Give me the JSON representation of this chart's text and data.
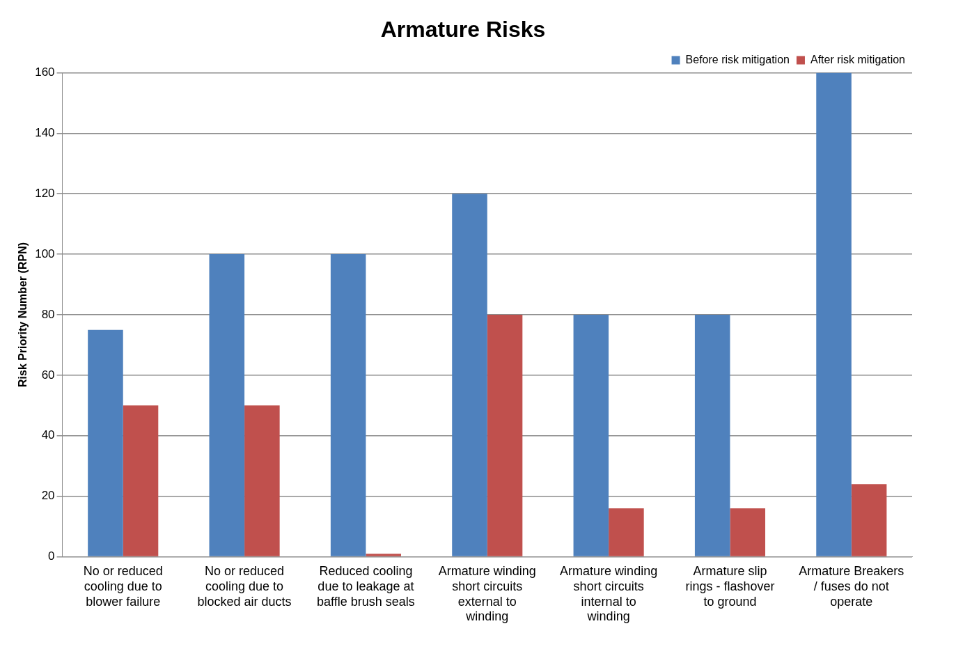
{
  "chart_data": {
    "type": "bar",
    "title": "Armature Risks",
    "ylabel": "Risk Priority Number (RPN)",
    "categories": [
      "No or reduced cooling due to blower failure",
      "No or reduced cooling due to blocked air ducts",
      "Reduced cooling due to leakage at baffle brush seals",
      "Armature winding short circuits external to winding",
      "Armature winding short circuits internal to winding",
      "Armature slip rings - flashover to ground",
      "Armature Breakers / fuses do not operate"
    ],
    "series": [
      {
        "name": "Before risk mitigation",
        "color": "#4f81bd",
        "values": [
          75,
          100,
          100,
          120,
          80,
          80,
          160
        ]
      },
      {
        "name": "After risk mitigation",
        "color": "#c0504d",
        "values": [
          50,
          50,
          1,
          80,
          16,
          16,
          24
        ]
      }
    ],
    "ylim": [
      0,
      160
    ],
    "yticks": [
      0,
      20,
      40,
      60,
      80,
      100,
      120,
      140,
      160
    ],
    "grid": "y",
    "legend": "top right"
  }
}
